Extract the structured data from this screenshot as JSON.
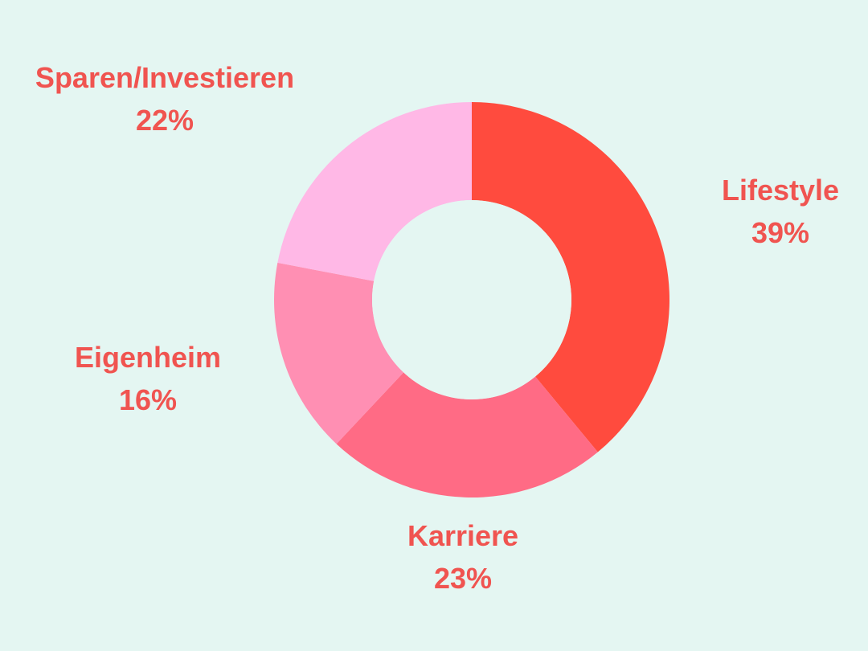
{
  "chart_data": {
    "type": "pie",
    "variant": "donut",
    "title": "",
    "start_angle_deg": 0,
    "direction": "clockwise",
    "slices": [
      {
        "label": "Lifestyle",
        "value": 39,
        "value_label": "39%",
        "color": "#ff4b3e"
      },
      {
        "label": "Karriere",
        "value": 23,
        "value_label": "23%",
        "color": "#ff6b85"
      },
      {
        "label": "Eigenheim",
        "value": 16,
        "value_label": "16%",
        "color": "#ff8fb3"
      },
      {
        "label": "Sparen/Investieren",
        "value": 22,
        "value_label": "22%",
        "color": "#ffb8e6"
      }
    ],
    "label_color": "#f05450",
    "background": "#e4f6f2"
  }
}
